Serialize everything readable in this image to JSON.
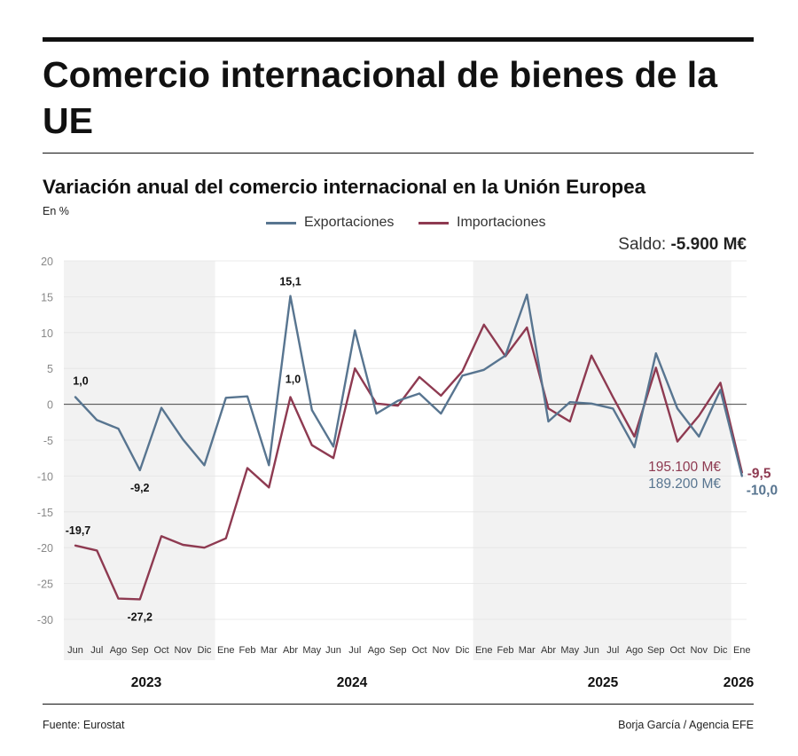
{
  "header": {
    "title": "Comercio internacional de bienes de la UE",
    "subtitle": "Variación anual del comercio internacional en la Unión Europea",
    "unit": "En %"
  },
  "saldo": {
    "label": "Saldo:",
    "value": "-5.900 M€"
  },
  "footer": {
    "source": "Fuente: Eurostat",
    "credit": "Borja García / Agencia EFE"
  },
  "chart_data": {
    "type": "line",
    "categories": [
      "Jun",
      "Jul",
      "Ago",
      "Sep",
      "Oct",
      "Nov",
      "Dic",
      "Ene",
      "Feb",
      "Mar",
      "Abr",
      "May",
      "Jun",
      "Jul",
      "Ago",
      "Sep",
      "Oct",
      "Nov",
      "Dic",
      "Ene",
      "Feb",
      "Mar",
      "Abr",
      "May",
      "Jun",
      "Jul",
      "Ago",
      "Sep",
      "Oct",
      "Nov",
      "Dic",
      "Ene"
    ],
    "year_labels": [
      "2023",
      "2024",
      "2025",
      "2026"
    ],
    "shaded_periods": [
      "2023",
      "2025"
    ],
    "ylim": [
      -30,
      20
    ],
    "yticks": [
      20,
      15,
      10,
      5,
      0,
      -5,
      -10,
      -15,
      -20,
      -25,
      -30
    ],
    "grid": true,
    "legend_position": "top-center",
    "series": [
      {
        "name": "Exportaciones",
        "color": "#587590",
        "values": [
          1.0,
          -2.2,
          -3.4,
          -9.2,
          -0.5,
          -4.9,
          -8.5,
          0.9,
          1.1,
          -8.5,
          15.1,
          -0.8,
          -5.9,
          10.3,
          -1.3,
          0.5,
          1.5,
          -1.3,
          4.0,
          4.8,
          6.8,
          15.3,
          -2.4,
          0.3,
          0.1,
          -0.6,
          -6.0,
          7.1,
          -0.6,
          -4.5,
          2.0,
          -10.0
        ],
        "end_amount": "189.200 M€"
      },
      {
        "name": "Importaciones",
        "color": "#8e3a51",
        "values": [
          -19.7,
          -20.4,
          -27.1,
          -27.2,
          -18.4,
          -19.6,
          -20.0,
          -18.7,
          -8.9,
          -11.6,
          1.0,
          -5.7,
          -7.5,
          5.0,
          0.1,
          -0.2,
          3.8,
          1.2,
          4.6,
          11.1,
          6.7,
          10.7,
          -0.6,
          -2.4,
          6.8,
          1.0,
          -4.5,
          5.1,
          -5.2,
          -1.6,
          3.0,
          -9.5
        ],
        "end_amount": "195.100 M€"
      }
    ],
    "annotations": [
      {
        "series": "Exportaciones",
        "index": 0,
        "text": "1,0"
      },
      {
        "series": "Exportaciones",
        "index": 3,
        "text": "-9,2"
      },
      {
        "series": "Exportaciones",
        "index": 10,
        "text": "15,1"
      },
      {
        "series": "Exportaciones",
        "index": 31,
        "text": "-10,0"
      },
      {
        "series": "Importaciones",
        "index": 0,
        "text": "-19,7"
      },
      {
        "series": "Importaciones",
        "index": 3,
        "text": "-27,2"
      },
      {
        "series": "Importaciones",
        "index": 10,
        "text": "1,0"
      },
      {
        "series": "Importaciones",
        "index": 31,
        "text": "-9,5"
      }
    ]
  }
}
